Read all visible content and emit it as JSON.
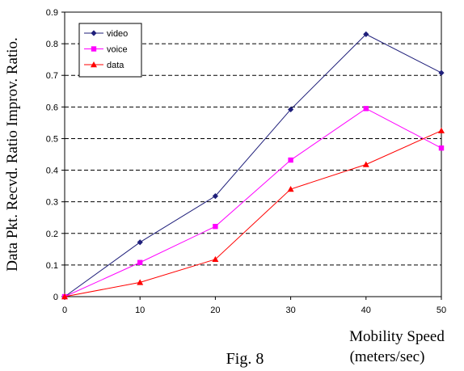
{
  "chart_data": {
    "type": "line",
    "x": [
      0,
      10,
      20,
      30,
      40,
      50
    ],
    "xlabel_line1": "Mobility Speed",
    "xlabel_line2": "(meters/sec)",
    "ylabel": "Data Pkt. Recvd. Ratio Improv. Ratio.",
    "caption": "Fig. 8",
    "xlim": [
      0,
      50
    ],
    "ylim": [
      0,
      0.9
    ],
    "xticks": [
      "0",
      "10",
      "20",
      "30",
      "40",
      "50"
    ],
    "yticks": [
      "0",
      "0.1",
      "0.2",
      "0.3",
      "0.4",
      "0.5",
      "0.6",
      "0.7",
      "0.8",
      "0.9"
    ],
    "grid": "horizontal dashed",
    "legend_position": "top-left",
    "series": [
      {
        "name": "video",
        "color": "#1f1f7a",
        "marker": "diamond",
        "values": [
          0,
          0.172,
          0.318,
          0.592,
          0.83,
          0.708
        ]
      },
      {
        "name": "voice",
        "color": "#ff00ff",
        "marker": "square",
        "values": [
          0,
          0.108,
          0.222,
          0.432,
          0.595,
          0.47
        ]
      },
      {
        "name": "data",
        "color": "#ff0000",
        "marker": "triangle",
        "values": [
          0,
          0.045,
          0.118,
          0.34,
          0.418,
          0.525
        ]
      }
    ]
  }
}
